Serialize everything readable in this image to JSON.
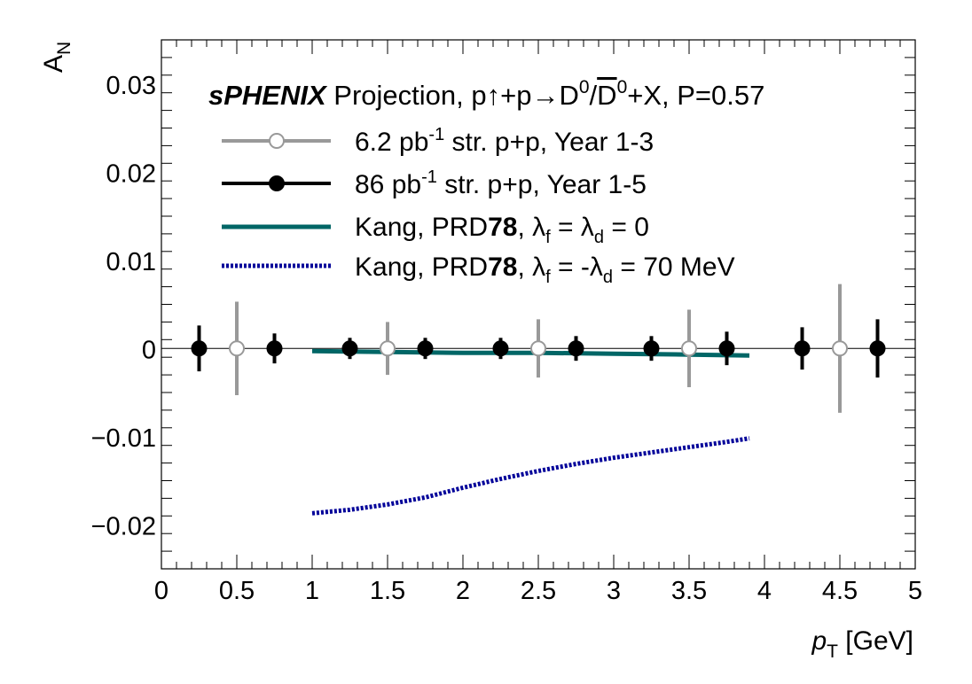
{
  "chart_data": {
    "type": "scatter",
    "title": {
      "experiment": "sPHENIX",
      "rest_prefix": "Projection, p",
      "spin_arrow": "↑",
      "reaction": "+p→D",
      "d_sup": "0",
      "slash": "/",
      "dbar": "D",
      "dbar_sup": "0",
      "suffix": "+X, P=0.57"
    },
    "xlabel": {
      "var": "p",
      "sub": "T",
      "unit": " [GeV]"
    },
    "ylabel": {
      "var": "A",
      "sub": "N"
    },
    "xlim": [
      0,
      5
    ],
    "ylim": [
      -0.025,
      0.035
    ],
    "x_ticks": [
      "0",
      "0.5",
      "1",
      "1.5",
      "2",
      "2.5",
      "3",
      "3.5",
      "4",
      "4.5",
      "5"
    ],
    "y_ticks": [
      "−0.02",
      "−0.01",
      "0",
      "0.01",
      "0.02",
      "0.03"
    ],
    "y_tick_values": [
      -0.02,
      -0.01,
      0,
      0.01,
      0.02,
      0.03
    ],
    "zero_line": true,
    "legend": {
      "position": "top-left",
      "entries": [
        {
          "key": "open",
          "text": "6.2 pb",
          "sup": "-1",
          "rest": " str. p+p, Year 1-3"
        },
        {
          "key": "filled",
          "text": "86 pb",
          "sup": "-1",
          "rest": " str. p+p, Year 1-5"
        },
        {
          "key": "kang0",
          "prefix": "Kang, PRD",
          "bold": "78",
          "mid": ", λ",
          "sub1": "f",
          "eq": " = λ",
          "sub2": "d",
          "end": " = 0"
        },
        {
          "key": "kang70",
          "prefix": "Kang, PRD",
          "bold": "78",
          "mid": ", λ",
          "sub1": "f",
          "eq": " = -λ",
          "sub2": "d",
          "end": " = 70 MeV"
        }
      ]
    },
    "series": [
      {
        "key": "open",
        "color": "#999999",
        "marker": "open-circle",
        "x": [
          0.5,
          1.5,
          2.5,
          3.5,
          4.5
        ],
        "y": [
          0,
          0,
          0,
          0,
          0
        ],
        "err": [
          0.0053,
          0.003,
          0.0033,
          0.0044,
          0.0073
        ]
      },
      {
        "key": "filled",
        "color": "#000000",
        "marker": "filled-circle",
        "x": [
          0.25,
          0.75,
          1.25,
          1.75,
          2.25,
          2.75,
          3.25,
          3.75,
          4.25,
          4.75
        ],
        "y": [
          0,
          0,
          0,
          0,
          0,
          0,
          0,
          0,
          0,
          0
        ],
        "err": [
          0.0026,
          0.0017,
          0.0012,
          0.0012,
          0.0012,
          0.0014,
          0.0014,
          0.0019,
          0.0024,
          0.0033
        ]
      },
      {
        "key": "kang0",
        "color": "#006666",
        "style": "solid",
        "x": [
          1.0,
          1.5,
          2.0,
          2.5,
          3.0,
          3.5,
          3.9
        ],
        "y": [
          -0.0003,
          -0.0004,
          -0.0005,
          -0.0005,
          -0.0006,
          -0.0007,
          -0.0008
        ]
      },
      {
        "key": "kang70",
        "color": "#000099",
        "style": "dotted",
        "x": [
          1.0,
          1.25,
          1.5,
          1.75,
          2.0,
          2.25,
          2.5,
          2.75,
          3.0,
          3.25,
          3.5,
          3.75,
          3.9
        ],
        "y": [
          -0.0187,
          -0.0183,
          -0.0177,
          -0.0169,
          -0.0158,
          -0.0148,
          -0.0139,
          -0.0131,
          -0.0124,
          -0.0118,
          -0.0112,
          -0.0106,
          -0.0102
        ]
      }
    ]
  }
}
